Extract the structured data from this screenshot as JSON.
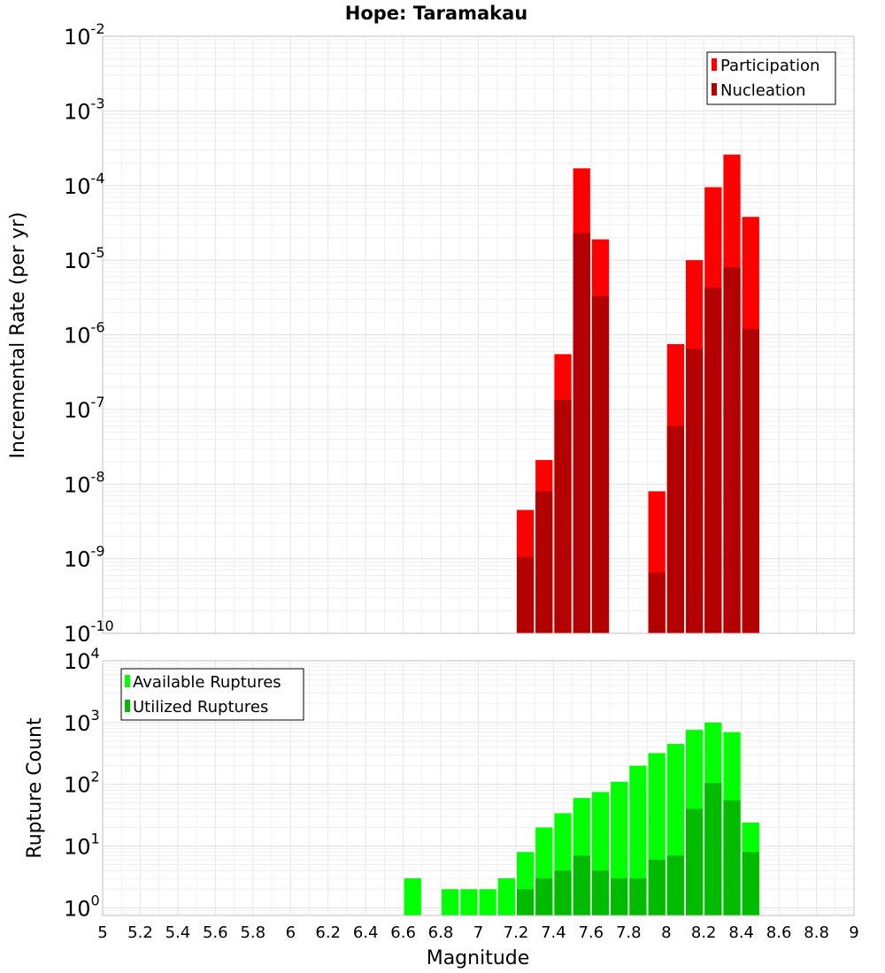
{
  "chart_data": [
    {
      "type": "bar",
      "title": "Hope: Taramakau",
      "xlabel": "",
      "ylabel": "Incremental Rate (per yr)",
      "yscale": "log",
      "ylim": [
        1e-10,
        0.01
      ],
      "xlim": [
        5,
        9
      ],
      "y_tick_labels": [
        {
          "base": "10",
          "exp": "-2"
        },
        {
          "base": "10",
          "exp": "-3"
        },
        {
          "base": "10",
          "exp": "-4"
        },
        {
          "base": "10",
          "exp": "-5"
        },
        {
          "base": "10",
          "exp": "-6"
        },
        {
          "base": "10",
          "exp": "-7"
        },
        {
          "base": "10",
          "exp": "-8"
        },
        {
          "base": "10",
          "exp": "-9"
        },
        {
          "base": "10",
          "exp": "-10"
        }
      ],
      "legend_position": "top-right",
      "colors": {
        "Participation": "#ff0000",
        "Nucleation": "#b30000"
      },
      "series": [
        {
          "name": "Participation",
          "x": [
            7.25,
            7.35,
            7.45,
            7.55,
            7.65,
            7.95,
            8.05,
            8.15,
            8.25,
            8.35,
            8.45
          ],
          "values": [
            4.5e-09,
            2.1e-08,
            5.5e-07,
            0.00017,
            1.9e-05,
            8e-09,
            7.5e-07,
            1e-05,
            9.5e-05,
            0.00026,
            3.8e-05
          ]
        },
        {
          "name": "Nucleation",
          "x": [
            7.25,
            7.35,
            7.45,
            7.55,
            7.65,
            7.95,
            8.05,
            8.15,
            8.25,
            8.35,
            8.45
          ],
          "values": [
            1.05e-09,
            8e-09,
            1.35e-07,
            2.3e-05,
            3.3e-06,
            6.5e-10,
            6e-08,
            6.5e-07,
            4.3e-06,
            8e-06,
            1.2e-06
          ]
        }
      ]
    },
    {
      "type": "bar",
      "title": "",
      "xlabel": "Magnitude",
      "ylabel": "Rupture Count",
      "yscale": "log",
      "ylim": [
        0.75,
        10000
      ],
      "xlim": [
        5,
        9
      ],
      "x_tick_labels": [
        "5",
        "5.2",
        "5.4",
        "5.6",
        "5.8",
        "6",
        "6.2",
        "6.4",
        "6.6",
        "6.8",
        "7",
        "7.2",
        "7.4",
        "7.6",
        "7.8",
        "8",
        "8.2",
        "8.4",
        "8.6",
        "8.8",
        "9"
      ],
      "y_tick_labels": [
        {
          "base": "10",
          "exp": "4"
        },
        {
          "base": "10",
          "exp": "3"
        },
        {
          "base": "10",
          "exp": "2"
        },
        {
          "base": "10",
          "exp": "1"
        },
        {
          "base": "10",
          "exp": "0"
        }
      ],
      "legend_position": "top-left",
      "colors": {
        "Available Ruptures": "#00ff00",
        "Utilized Ruptures": "#00bb00"
      },
      "series": [
        {
          "name": "Available Ruptures",
          "x": [
            6.65,
            6.85,
            6.95,
            7.05,
            7.15,
            7.25,
            7.35,
            7.45,
            7.55,
            7.65,
            7.75,
            7.85,
            7.95,
            8.05,
            8.15,
            8.25,
            8.35,
            8.45
          ],
          "values": [
            3,
            2,
            2,
            2,
            3,
            8,
            20,
            34,
            60,
            75,
            110,
            200,
            320,
            450,
            760,
            1000,
            700,
            24
          ]
        },
        {
          "name": "Utilized Ruptures",
          "x": [
            7.25,
            7.35,
            7.45,
            7.55,
            7.65,
            7.75,
            7.85,
            7.95,
            8.05,
            8.15,
            8.25,
            8.35,
            8.45
          ],
          "values": [
            2,
            3,
            4,
            7,
            4,
            3,
            3,
            6,
            7,
            40,
            105,
            55,
            8
          ]
        }
      ]
    }
  ]
}
